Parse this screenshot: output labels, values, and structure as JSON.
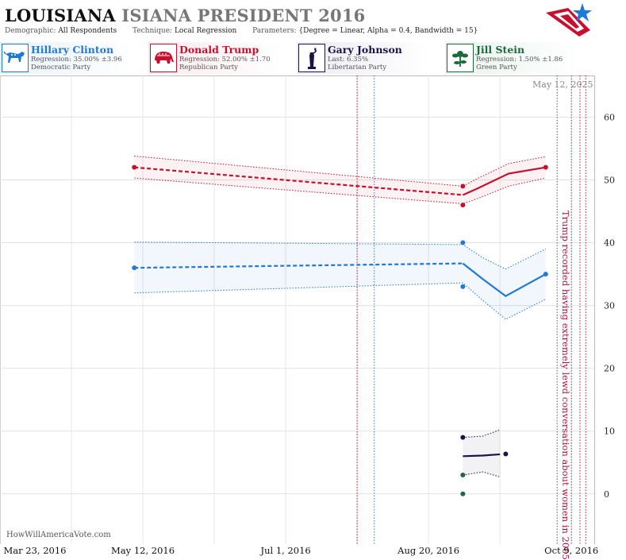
{
  "header": {
    "title_main": "LOUISIANA",
    "title_rest": "ISIANA PRESIDENT 2016",
    "demographic_label": "Demographic:",
    "demographic_value": "All Respondents",
    "technique_label": "Technique:",
    "technique_value": "Local Regression",
    "parameters_label": "Parameters:",
    "parameters_value": "{Degree = Linear, Alpha = 0.4, Bandwidth = 15}"
  },
  "candidates": [
    {
      "name": "Hillary Clinton",
      "stat": "Regression: 35.00% ±3.96",
      "party": "Democratic Party",
      "color": "#1f7ad6",
      "bg": "#e8f1fb",
      "icon": "donkey-icon"
    },
    {
      "name": "Donald Trump",
      "stat": "Regression: 52.00% ±1.70",
      "party": "Republican Party",
      "color": "#c8102e",
      "bg": "#fbe9ec",
      "icon": "elephant-icon"
    },
    {
      "name": "Gary Johnson",
      "stat": "Last: 6.35%",
      "party": "Libertarian Party",
      "color": "#1a1448",
      "bg": "#ecebf3",
      "icon": "statue-of-liberty-icon"
    },
    {
      "name": "Jill Stein",
      "stat": "Regression: 1.50% ±1.86",
      "party": "Green Party",
      "color": "#1a6a3a",
      "bg": "#e8f3ec",
      "icon": "flower-icon"
    }
  ],
  "watermark": "HowWillAmericaVote.com",
  "date_stamp": "May 12, 2025",
  "annotation": "Trump recorded having extremely lewd conversation about women in 2005",
  "chart_data": {
    "type": "line",
    "x_ticks": [
      "Mar 23, 2016",
      "May 12, 2016",
      "Jul 1, 2016",
      "Aug 20, 2016",
      "Oct 9, 2016"
    ],
    "y_ticks": [
      0,
      10,
      20,
      30,
      40,
      50,
      60
    ],
    "ylim": [
      -8,
      66
    ],
    "xlim": [
      "2016-03-23",
      "2016-10-17"
    ],
    "grid": true,
    "vertical_markers": [
      {
        "date": "2016-07-26",
        "color": "#c8102e",
        "style": "dotted"
      },
      {
        "date": "2016-08-01",
        "color": "#1f7ad6",
        "style": "dotted"
      },
      {
        "date": "2016-10-04",
        "color": "#555555",
        "style": "dotted"
      },
      {
        "date": "2016-10-09",
        "color": "#555555",
        "style": "dotted"
      },
      {
        "date": "2016-10-12",
        "color": "#c8102e",
        "style": "dotted"
      },
      {
        "date": "2016-10-14",
        "color": "#c8102e",
        "style": "dotted"
      }
    ],
    "series": [
      {
        "name": "Donald Trump",
        "color": "#c8102e",
        "points": [
          {
            "x": "2016-05-09",
            "y": 52.0
          },
          {
            "x": "2016-09-01",
            "y": 49.0
          },
          {
            "x": "2016-09-01",
            "y": 46.0
          },
          {
            "x": "2016-09-30",
            "y": 52.0
          }
        ],
        "trend": [
          {
            "x": "2016-05-09",
            "y": 52.0,
            "lo": 50.3,
            "hi": 53.8
          },
          {
            "x": "2016-09-01",
            "y": 47.6,
            "lo": 46.2,
            "hi": 49.0
          },
          {
            "x": "2016-09-06",
            "y": 48.6,
            "lo": 47.0,
            "hi": 50.2
          },
          {
            "x": "2016-09-17",
            "y": 51.0,
            "lo": 49.0,
            "hi": 52.6
          },
          {
            "x": "2016-09-30",
            "y": 52.0,
            "lo": 50.3,
            "hi": 53.7
          }
        ]
      },
      {
        "name": "Hillary Clinton",
        "color": "#1f7ad6",
        "points": [
          {
            "x": "2016-05-09",
            "y": 36.0
          },
          {
            "x": "2016-09-01",
            "y": 40.0
          },
          {
            "x": "2016-09-01",
            "y": 33.0
          },
          {
            "x": "2016-09-30",
            "y": 35.0
          }
        ],
        "trend": [
          {
            "x": "2016-05-09",
            "y": 36.0,
            "lo": 32.0,
            "hi": 40.1
          },
          {
            "x": "2016-09-01",
            "y": 36.7,
            "lo": 33.6,
            "hi": 39.7
          },
          {
            "x": "2016-09-08",
            "y": 34.2,
            "lo": 30.8,
            "hi": 37.6
          },
          {
            "x": "2016-09-16",
            "y": 31.5,
            "lo": 27.8,
            "hi": 35.8
          },
          {
            "x": "2016-09-30",
            "y": 35.0,
            "lo": 31.0,
            "hi": 39.0
          }
        ]
      },
      {
        "name": "Gary Johnson",
        "color": "#1a1448",
        "points": [
          {
            "x": "2016-09-01",
            "y": 9.0
          },
          {
            "x": "2016-09-16",
            "y": 6.35
          }
        ],
        "trend": [
          {
            "x": "2016-09-01",
            "y": 6.0,
            "lo": 3.0,
            "hi": 9.0
          },
          {
            "x": "2016-09-08",
            "y": 6.1,
            "lo": 3.5,
            "hi": 9.2
          },
          {
            "x": "2016-09-14",
            "y": 6.3,
            "lo": 2.7,
            "hi": 10.2
          }
        ]
      },
      {
        "name": "Jill Stein",
        "color": "#1a6a3a",
        "points": [
          {
            "x": "2016-09-01",
            "y": 3.0
          },
          {
            "x": "2016-09-01",
            "y": 0.0
          }
        ],
        "trend": []
      }
    ]
  }
}
